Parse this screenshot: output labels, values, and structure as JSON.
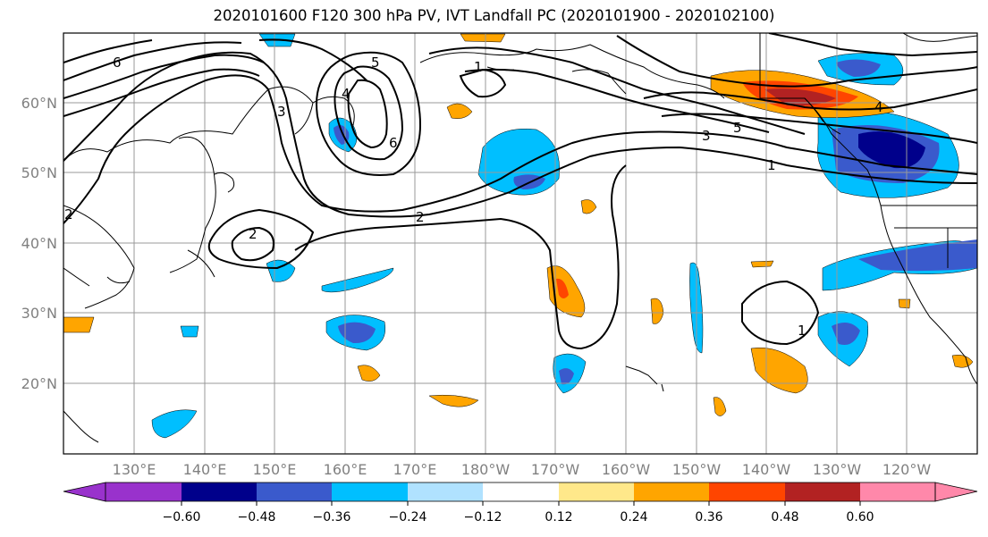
{
  "title": "2020101600 F120 300 hPa PV, IVT Landfall PC (2020101900 - 2020102100)",
  "lat_labels": [
    "60°N",
    "50°N",
    "40°N",
    "30°N",
    "20°N"
  ],
  "lon_labels": [
    "130°E",
    "140°E",
    "150°E",
    "160°E",
    "170°E",
    "180°W",
    "170°W",
    "160°W",
    "150°W",
    "140°W",
    "130°W",
    "120°W"
  ],
  "colorbar": {
    "ticks": [
      "−0.60",
      "−0.48",
      "−0.36",
      "−0.24",
      "−0.12",
      "0.12",
      "0.24",
      "0.36",
      "0.48",
      "0.60"
    ],
    "colors": [
      "#9932cc",
      "#00008b",
      "#3a5acc",
      "#00bfff",
      "#b0e2ff",
      "#ffffff",
      "#ffe88a",
      "#ffa500",
      "#ff4500",
      "#b22222",
      "#ff88aa"
    ]
  },
  "pv_contour_labels": [
    "1",
    "2",
    "2",
    "3",
    "4",
    "5",
    "6",
    "1",
    "1",
    "2",
    "3",
    "4",
    "5",
    "6"
  ],
  "colors": {
    "frame": "#000000",
    "grid": "#999999",
    "tick_text": "#808080"
  }
}
